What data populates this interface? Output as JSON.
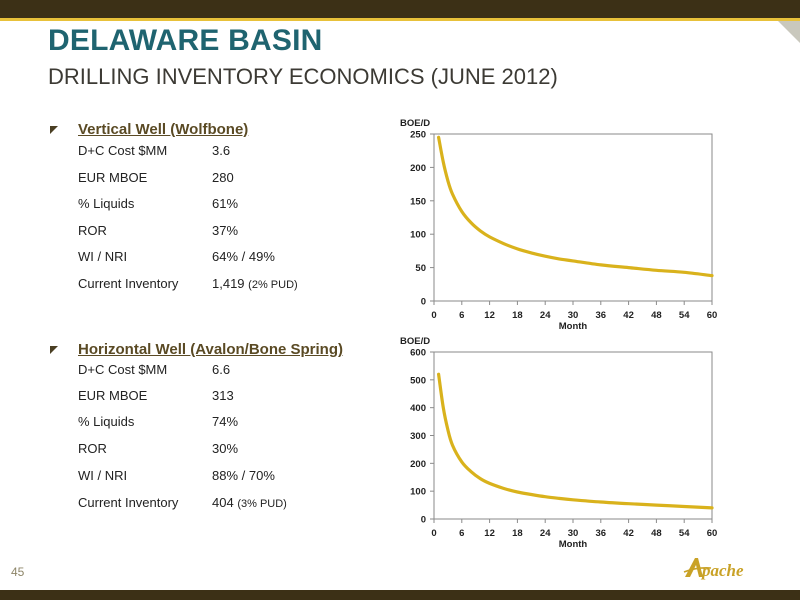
{
  "header": {
    "title": "DELAWARE BASIN",
    "subtitle": "DRILLING INVENTORY ECONOMICS (JUNE 2012)"
  },
  "sections": [
    {
      "title": "Vertical Well (Wolfbone)",
      "rows": [
        {
          "label": "D+C Cost $MM",
          "value": "3.6",
          "note": ""
        },
        {
          "label": "EUR MBOE",
          "value": "280",
          "note": ""
        },
        {
          "label": "% Liquids",
          "value": "61%",
          "note": ""
        },
        {
          "label": "ROR",
          "value": "37%",
          "note": ""
        },
        {
          "label": "WI / NRI",
          "value": "64% / 49%",
          "note": ""
        },
        {
          "label": "Current Inventory",
          "value": "1,419",
          "note": "(2% PUD)"
        }
      ]
    },
    {
      "title": "Horizontal Well (Avalon/Bone Spring)",
      "rows": [
        {
          "label": "D+C Cost $MM",
          "value": "6.6",
          "note": ""
        },
        {
          "label": "EUR MBOE",
          "value": "313",
          "note": ""
        },
        {
          "label": "% Liquids",
          "value": "74%",
          "note": ""
        },
        {
          "label": "ROR",
          "value": "30%",
          "note": ""
        },
        {
          "label": "WI / NRI",
          "value": "88% / 70%",
          "note": ""
        },
        {
          "label": "Current Inventory",
          "value": "404",
          "note": "(3% PUD)"
        }
      ]
    }
  ],
  "chart_data": [
    {
      "type": "line",
      "ylabel": "BOE/D",
      "xlabel": "Month",
      "xlim": [
        0,
        60
      ],
      "ylim": [
        0,
        250
      ],
      "xticks": [
        0,
        6,
        12,
        18,
        24,
        30,
        36,
        42,
        48,
        54,
        60
      ],
      "yticks": [
        0,
        50,
        100,
        150,
        200,
        250
      ],
      "grid": false,
      "line_color": "#d9b21c",
      "series": [
        {
          "name": "",
          "x": [
            1,
            2,
            3,
            4,
            6,
            8,
            10,
            12,
            15,
            18,
            21,
            24,
            27,
            30,
            36,
            42,
            48,
            54,
            60
          ],
          "y": [
            245,
            208,
            180,
            160,
            134,
            117,
            105,
            96,
            86,
            78,
            72,
            67,
            63,
            60,
            54,
            50,
            46,
            43,
            38
          ]
        }
      ]
    },
    {
      "type": "line",
      "ylabel": "BOE/D",
      "xlabel": "Month",
      "xlim": [
        0,
        60
      ],
      "ylim": [
        0,
        600
      ],
      "xticks": [
        0,
        6,
        12,
        18,
        24,
        30,
        36,
        42,
        48,
        54,
        60
      ],
      "yticks": [
        0,
        100,
        200,
        300,
        400,
        500,
        600
      ],
      "grid": false,
      "line_color": "#d9b21c",
      "series": [
        {
          "name": "",
          "x": [
            1,
            2,
            3,
            4,
            6,
            8,
            10,
            12,
            15,
            18,
            21,
            24,
            27,
            30,
            36,
            42,
            48,
            54,
            60
          ],
          "y": [
            520,
            400,
            320,
            265,
            205,
            170,
            145,
            128,
            110,
            97,
            88,
            80,
            74,
            69,
            61,
            55,
            50,
            45,
            40
          ]
        }
      ]
    }
  ],
  "footer": {
    "page_number": "45",
    "logo_text": "Apache"
  }
}
